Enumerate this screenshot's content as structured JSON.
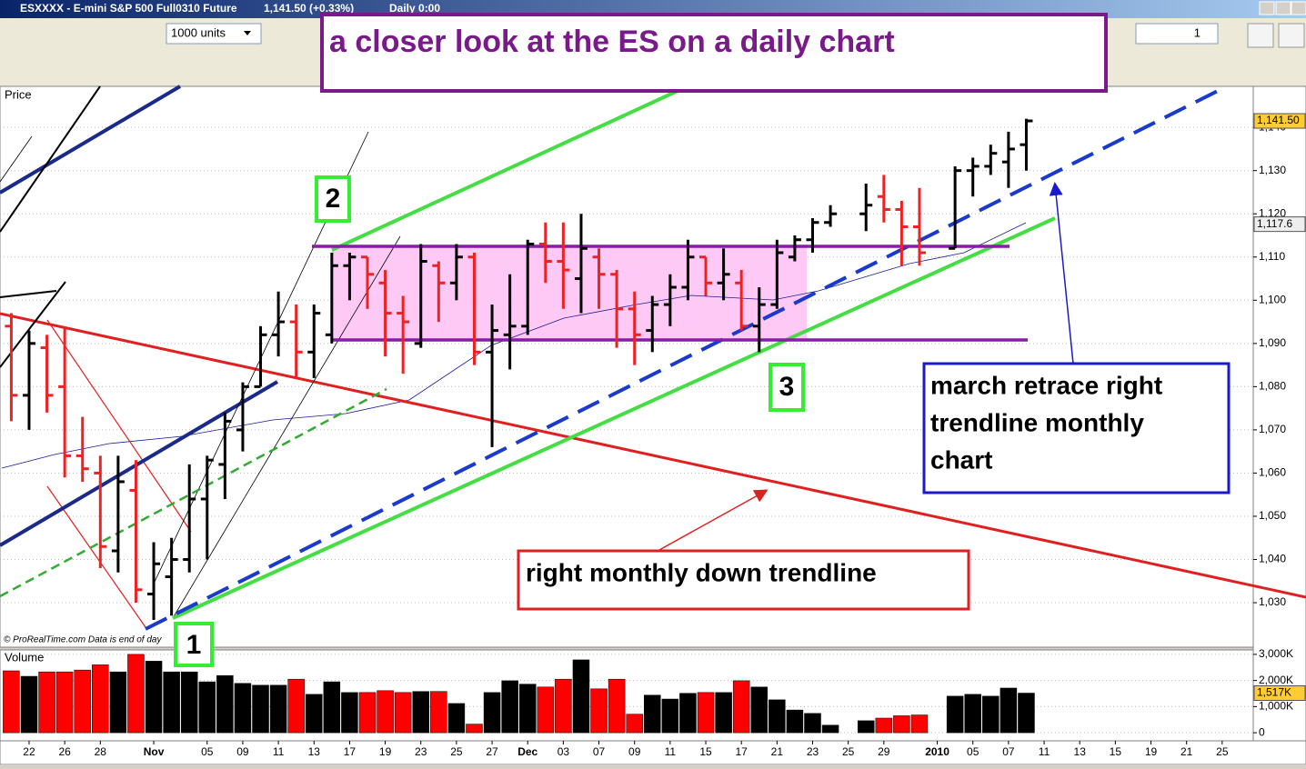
{
  "window": {
    "title": "ESXXXX - E-mini S&P 500 Full0310 Future",
    "quote": "1,141.50 (+0.33%)",
    "period": "Daily  0:00"
  },
  "toolbar": {
    "units": "1000 units",
    "count": "1"
  },
  "annotations": {
    "headline": "a closer look at the ES on a daily chart",
    "march_note": [
      "march retrace right",
      "trendline monthly",
      "chart"
    ],
    "monthly_note": "right monthly down  trendline",
    "point_1": "1",
    "point_2": "2",
    "point_3": "3",
    "watermark": "© ProRealTime.com   Data is end of day"
  },
  "chart_data": [
    {
      "type": "ohlc",
      "title": "Price",
      "up_color": "#000000",
      "down_color": "#ee2222",
      "grid": true,
      "categories": [
        null,
        "22",
        null,
        "26",
        null,
        "28",
        null,
        null,
        "Nov",
        null,
        null,
        "05",
        null,
        "09",
        null,
        "11",
        null,
        "13",
        null,
        "17",
        null,
        "19",
        null,
        "23",
        null,
        "25",
        null,
        "27",
        null,
        "Dec",
        null,
        "03",
        null,
        "07",
        null,
        "09",
        null,
        "11",
        null,
        "15",
        null,
        "17",
        null,
        "21",
        null,
        "23",
        null,
        "25",
        null,
        "29",
        null,
        null,
        "2010",
        null,
        "05",
        null,
        "07",
        null,
        "11",
        null,
        "13",
        null,
        "15",
        null,
        "19",
        null,
        "21",
        null,
        "25",
        null
      ],
      "open": [
        1094,
        1078,
        1089,
        1080,
        1064,
        1060,
        1042,
        1056,
        1032,
        1036,
        1040,
        1054,
        1062,
        1070,
        1080,
        1092,
        1095,
        1088,
        1092,
        1108,
        1110,
        1104,
        1097,
        1090,
        1108,
        1104,
        1110,
        1088,
        1092,
        1094,
        1113,
        1109,
        1105,
        1110,
        1106,
        1098,
        1093,
        1099,
        1103,
        1110,
        1104,
        1104,
        1094,
        1099,
        1110,
        1114,
        1118,
        null,
        1120,
        1124,
        1121,
        1117,
        null,
        1112,
        1130,
        1131,
        1132,
        1136,
        null,
        null,
        null,
        null,
        null,
        null,
        null,
        null,
        null,
        null,
        null,
        null
      ],
      "high": [
        1097,
        1093,
        1092,
        1094,
        1073,
        1064,
        1064,
        1063,
        1044,
        1045,
        1062,
        1064,
        1074,
        1081,
        1094,
        1102,
        1099,
        1099,
        1111,
        1111,
        1110,
        1107,
        1101,
        1113,
        1109,
        1113,
        1111,
        1099,
        1106,
        1114,
        1118,
        1118,
        1120,
        1112,
        1107,
        1102,
        1101,
        1106,
        1114,
        1110,
        1112,
        1107,
        1103,
        1114,
        1115,
        1119,
        1122,
        null,
        1127,
        1129,
        1123,
        1126,
        null,
        1131,
        1133,
        1136,
        1139,
        1142,
        null,
        null,
        null,
        null,
        null,
        null,
        null,
        null,
        null,
        null,
        null,
        null
      ],
      "low": [
        1072,
        1070,
        1074,
        1059,
        1058,
        1038,
        1037,
        1030,
        1026,
        1027,
        1037,
        1040,
        1054,
        1065,
        1080,
        1087,
        1082,
        1082,
        1090,
        1100,
        1098,
        1087,
        1083,
        1089,
        1095,
        1100,
        1085,
        1066,
        1084,
        1092,
        1104,
        1098,
        1097,
        1098,
        1089,
        1085,
        1088,
        1094,
        1100,
        1101,
        1100,
        1093,
        1088,
        1098,
        1109,
        1111,
        1117,
        null,
        1116,
        1118,
        1108,
        1108,
        null,
        1112,
        1124,
        1129,
        1126,
        1130,
        null,
        null,
        null,
        null,
        null,
        null,
        null,
        null,
        null,
        null,
        null,
        null
      ],
      "close": [
        1078,
        1090,
        1078,
        1064,
        1061,
        1043,
        1058,
        1033,
        1039,
        1040,
        1054,
        1063,
        1072,
        1080,
        1092,
        1095,
        1088,
        1097,
        1108,
        1110,
        1106,
        1097,
        1095,
        1109,
        1104,
        1110,
        1088,
        1093,
        1094,
        1113,
        1109,
        1107,
        1112,
        1106,
        1098,
        1092,
        1099,
        1103,
        1110,
        1104,
        1106,
        1094,
        1099,
        1111,
        1114,
        1118,
        1120,
        null,
        1122,
        1121,
        1117,
        1111,
        null,
        1130,
        1131,
        1134,
        1135,
        1141.5,
        null,
        null,
        null,
        null,
        null,
        null,
        null,
        null,
        null,
        null,
        null,
        null
      ],
      "ylim": [
        1019.7,
        1149.5
      ],
      "yticks": [
        {
          "value": 1030,
          "label": "1,030"
        },
        {
          "value": 1040,
          "label": "1,040"
        },
        {
          "value": 1050,
          "label": "1,050"
        },
        {
          "value": 1060,
          "label": "1,060"
        },
        {
          "value": 1070,
          "label": "1,070"
        },
        {
          "value": 1080,
          "label": "1,080"
        },
        {
          "value": 1090,
          "label": "1,090"
        },
        {
          "value": 1100,
          "label": "1,100"
        },
        {
          "value": 1110,
          "label": "1,110"
        },
        {
          "value": 1120,
          "label": "1,120"
        },
        {
          "value": 1130,
          "label": "1,130"
        },
        {
          "value": 1140,
          "label": "1,140"
        }
      ],
      "last_price": {
        "value": 1141.5,
        "label": "1,141.50"
      },
      "average": {
        "value": 1117.6,
        "label": "1,117.6"
      }
    },
    {
      "type": "volume",
      "title": "Volume",
      "grid": true,
      "values": [
        2370000,
        2160000,
        2330000,
        2330000,
        2400000,
        2600000,
        2330000,
        3000000,
        2740000,
        2330000,
        2330000,
        1950000,
        2190000,
        1890000,
        1820000,
        1820000,
        2050000,
        1470000,
        1950000,
        1540000,
        1540000,
        1610000,
        1540000,
        1580000,
        1580000,
        1120000,
        330000,
        1540000,
        1990000,
        1860000,
        1750000,
        2050000,
        2790000,
        1680000,
        2050000,
        710000,
        1440000,
        1290000,
        1510000,
        1540000,
        1540000,
        1990000,
        1750000,
        1260000,
        870000,
        740000,
        290000,
        null,
        460000,
        560000,
        650000,
        680000,
        null,
        1400000,
        1470000,
        1400000,
        1710000,
        1517000,
        null,
        null,
        null,
        null,
        null,
        null,
        null,
        null,
        null,
        null,
        null,
        null
      ],
      "ylim": [
        -310000,
        3170000
      ],
      "yticks": [
        0,
        {
          "value": 1000000,
          "label": "1,000K"
        },
        {
          "value": 2000000,
          "label": "2,000K"
        },
        {
          "value": 3000000,
          "label": "3,000K"
        }
      ],
      "last_value": {
        "value": 1517000,
        "label": "1,517K"
      }
    }
  ]
}
